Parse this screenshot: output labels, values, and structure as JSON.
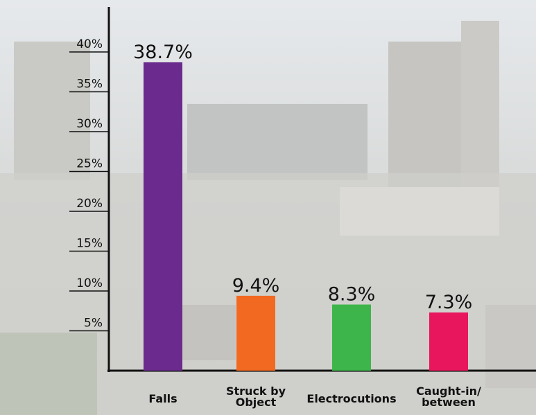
{
  "chart_data": {
    "type": "bar",
    "categories": [
      "Falls",
      "Struck by\nObject",
      "Electrocutions",
      "Caught-in/\nbetween"
    ],
    "values": [
      38.7,
      9.4,
      8.3,
      7.3
    ],
    "value_labels": [
      "38.7%",
      "9.4%",
      "8.3%",
      "7.3%"
    ],
    "colors": [
      "#6a2a8e",
      "#f26a21",
      "#3db54a",
      "#e8175d"
    ],
    "ylim": [
      0,
      45.5
    ],
    "yticks": [
      {
        "value": 5,
        "label": "5%"
      },
      {
        "value": 10,
        "label": "10%"
      },
      {
        "value": 15,
        "label": "15%"
      },
      {
        "value": 20,
        "label": "20%"
      },
      {
        "value": 25,
        "label": "25%"
      },
      {
        "value": 30,
        "label": "30%"
      },
      {
        "value": 35,
        "label": "35%"
      },
      {
        "value": 40,
        "label": "40%"
      }
    ]
  }
}
